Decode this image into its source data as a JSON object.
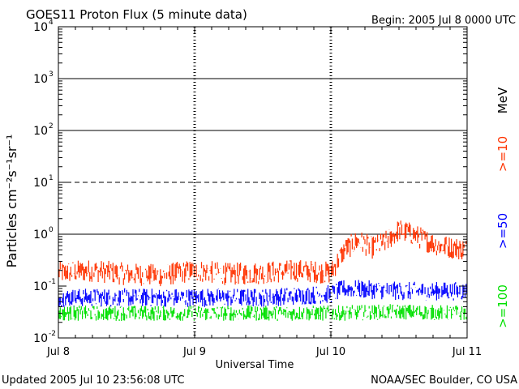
{
  "chart_data": {
    "type": "line",
    "title": "GOES11 Proton Flux (5 minute data)",
    "begin_label": "Begin: 2005 Jul 8 0000 UTC",
    "xlabel": "Universal Time",
    "ylabel": "Particles cm⁻²s⁻¹sr⁻¹",
    "y_scale": "log",
    "ylim": [
      0.01,
      10000
    ],
    "y_ticks": [
      {
        "value": 0.01,
        "base": "10",
        "exp": "-2"
      },
      {
        "value": 0.1,
        "base": "10",
        "exp": "-1"
      },
      {
        "value": 1,
        "base": "10",
        "exp": "0"
      },
      {
        "value": 10,
        "base": "10",
        "exp": "1"
      },
      {
        "value": 100,
        "base": "10",
        "exp": "2"
      },
      {
        "value": 1000,
        "base": "10",
        "exp": "3"
      },
      {
        "value": 10000,
        "base": "10",
        "exp": "4"
      }
    ],
    "x_range_days": [
      0,
      3
    ],
    "x_ticks": [
      {
        "day": 0,
        "label": "Jul 8"
      },
      {
        "day": 1,
        "label": "Jul 9"
      },
      {
        "day": 2,
        "label": "Jul 10"
      },
      {
        "day": 3,
        "label": "Jul 11"
      }
    ],
    "threshold_lines": [
      {
        "value": 10,
        "style": "dashed"
      },
      {
        "value": 1,
        "style": "solid"
      },
      {
        "value": 100,
        "style": "solid"
      },
      {
        "value": 1000,
        "style": "solid"
      }
    ],
    "series": [
      {
        "name": ">=10",
        "color": "#ff3300",
        "points": [
          [
            0.0,
            0.18
          ],
          [
            0.25,
            0.2
          ],
          [
            0.5,
            0.17
          ],
          [
            0.75,
            0.16
          ],
          [
            1.0,
            0.2
          ],
          [
            1.25,
            0.17
          ],
          [
            1.5,
            0.18
          ],
          [
            1.75,
            0.2
          ],
          [
            2.0,
            0.18
          ],
          [
            2.1,
            0.5
          ],
          [
            2.2,
            0.75
          ],
          [
            2.3,
            0.55
          ],
          [
            2.4,
            0.7
          ],
          [
            2.5,
            1.2
          ],
          [
            2.6,
            1.0
          ],
          [
            2.7,
            0.75
          ],
          [
            2.8,
            0.6
          ],
          [
            2.9,
            0.55
          ],
          [
            3.0,
            0.5
          ]
        ]
      },
      {
        "name": ">=50",
        "color": "#0000ff",
        "points": [
          [
            0.0,
            0.06
          ],
          [
            0.5,
            0.06
          ],
          [
            1.0,
            0.06
          ],
          [
            1.5,
            0.06
          ],
          [
            2.0,
            0.07
          ],
          [
            2.1,
            0.09
          ],
          [
            2.5,
            0.08
          ],
          [
            3.0,
            0.08
          ]
        ]
      },
      {
        "name": ">=100",
        "color": "#00e000",
        "points": [
          [
            0.0,
            0.03
          ],
          [
            0.5,
            0.03
          ],
          [
            1.0,
            0.03
          ],
          [
            1.5,
            0.03
          ],
          [
            2.0,
            0.03
          ],
          [
            2.5,
            0.032
          ],
          [
            3.0,
            0.03
          ]
        ]
      }
    ],
    "legend": [
      {
        "label": "MeV",
        "color": "#000000"
      },
      {
        "label": ">=10",
        "color": "#ff3300"
      },
      {
        "label": ">=50",
        "color": "#0000ff"
      },
      {
        "label": ">=100",
        "color": "#00e000"
      }
    ],
    "grid": false
  },
  "footer": {
    "updated": "Updated 2005 Jul 10 23:56:08 UTC",
    "source": "NOAA/SEC Boulder, CO USA"
  }
}
